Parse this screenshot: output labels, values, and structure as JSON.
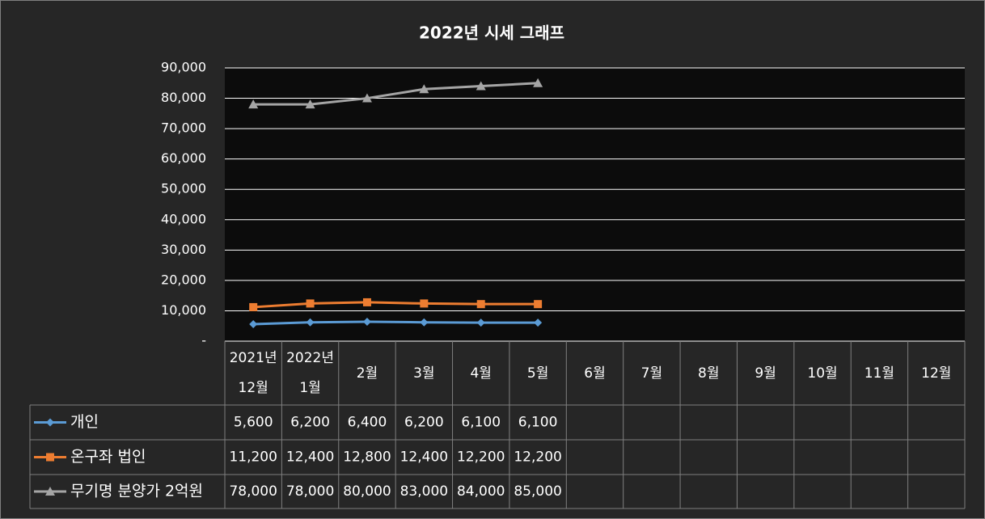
{
  "chart_data": {
    "type": "line",
    "title": "2022년 시세 그래프",
    "categories": [
      [
        "2021년",
        "12월"
      ],
      [
        "2022년",
        "1월"
      ],
      [
        "2월"
      ],
      [
        "3월"
      ],
      [
        "4월"
      ],
      [
        "5월"
      ],
      [
        "6월"
      ],
      [
        "7월"
      ],
      [
        "8월"
      ],
      [
        "9월"
      ],
      [
        "10월"
      ],
      [
        "11월"
      ],
      [
        "12월"
      ]
    ],
    "series": [
      {
        "name": "개인",
        "color": "#5b9bd5",
        "marker": "diamond",
        "values": [
          5600,
          6200,
          6400,
          6200,
          6100,
          6100,
          null,
          null,
          null,
          null,
          null,
          null,
          null
        ],
        "value_labels": [
          "5,600",
          "6,200",
          "6,400",
          "6,200",
          "6,100",
          "6,100",
          null,
          null,
          null,
          null,
          null,
          null,
          null
        ]
      },
      {
        "name": "온구좌 법인",
        "color": "#ed7d31",
        "marker": "square",
        "values": [
          11200,
          12400,
          12800,
          12400,
          12200,
          12200,
          null,
          null,
          null,
          null,
          null,
          null,
          null
        ],
        "value_labels": [
          "11,200",
          "12,400",
          "12,800",
          "12,400",
          "12,200",
          "12,200",
          null,
          null,
          null,
          null,
          null,
          null,
          null
        ]
      },
      {
        "name": "무기명 분양가 2억원",
        "color": "#a5a5a5",
        "marker": "triangle",
        "values": [
          78000,
          78000,
          80000,
          83000,
          84000,
          85000,
          null,
          null,
          null,
          null,
          null,
          null,
          null
        ],
        "value_labels": [
          "78,000",
          "78,000",
          "80,000",
          "83,000",
          "84,000",
          "85,000",
          null,
          null,
          null,
          null,
          null,
          null,
          null
        ]
      }
    ],
    "ylim": [
      0,
      90000
    ],
    "yticks": [
      {
        "value": 0,
        "label": "-"
      },
      {
        "value": 10000,
        "label": "10,000"
      },
      {
        "value": 20000,
        "label": "20,000"
      },
      {
        "value": 30000,
        "label": "30,000"
      },
      {
        "value": 40000,
        "label": "40,000"
      },
      {
        "value": 50000,
        "label": "50,000"
      },
      {
        "value": 60000,
        "label": "60,000"
      },
      {
        "value": 70000,
        "label": "70,000"
      },
      {
        "value": 80000,
        "label": "80,000"
      },
      {
        "value": 90000,
        "label": "90,000"
      }
    ],
    "grid": true
  }
}
